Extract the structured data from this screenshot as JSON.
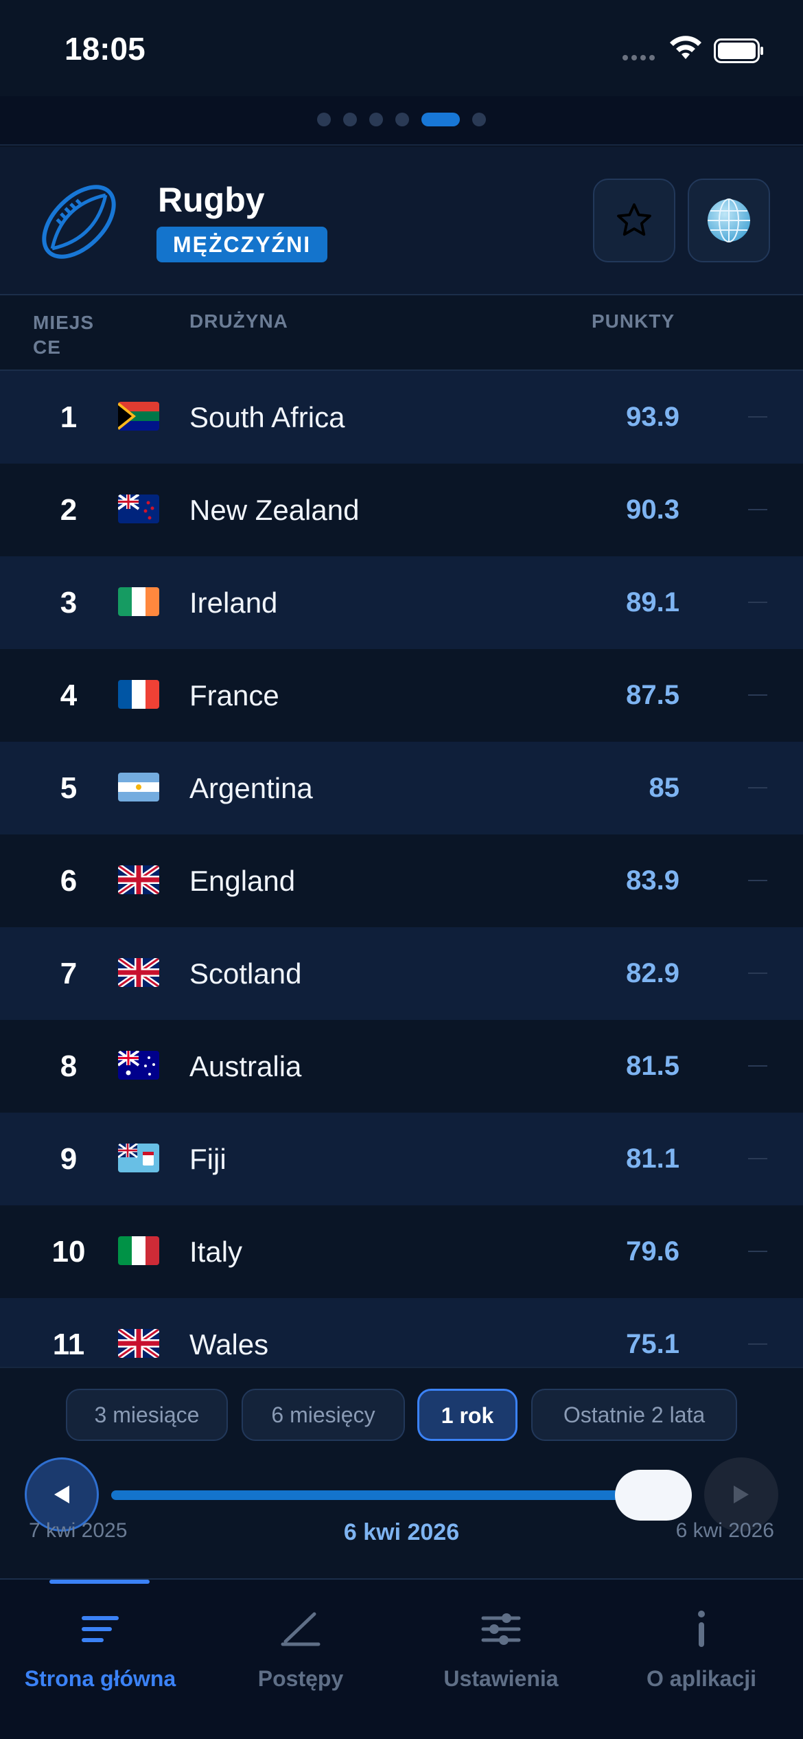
{
  "status_bar": {
    "time": "18:05"
  },
  "page_indicator": {
    "count": 6,
    "active_index": 4
  },
  "header": {
    "title": "Rugby",
    "badge": "MĘŻCZYŹNI",
    "icons": {
      "sport": "rugby-ball-icon",
      "favorite": "star-icon",
      "region": "globe-icon"
    }
  },
  "table": {
    "columns": {
      "rank": "MIEJS CE",
      "team": "DRUŻYNA",
      "points": "PUNKTY"
    },
    "rows": [
      {
        "rank": "1",
        "flag": "south-africa",
        "team": "South Africa",
        "points": "93.9",
        "change": "—"
      },
      {
        "rank": "2",
        "flag": "new-zealand",
        "team": "New Zealand",
        "points": "90.3",
        "change": "—"
      },
      {
        "rank": "3",
        "flag": "ireland",
        "team": "Ireland",
        "points": "89.1",
        "change": "—"
      },
      {
        "rank": "4",
        "flag": "france",
        "team": "France",
        "points": "87.5",
        "change": "—"
      },
      {
        "rank": "5",
        "flag": "argentina",
        "team": "Argentina",
        "points": "85",
        "change": "—"
      },
      {
        "rank": "6",
        "flag": "uk",
        "team": "England",
        "points": "83.9",
        "change": "—"
      },
      {
        "rank": "7",
        "flag": "uk",
        "team": "Scotland",
        "points": "82.9",
        "change": "—"
      },
      {
        "rank": "8",
        "flag": "australia",
        "team": "Australia",
        "points": "81.5",
        "change": "—"
      },
      {
        "rank": "9",
        "flag": "fiji",
        "team": "Fiji",
        "points": "81.1",
        "change": "—"
      },
      {
        "rank": "10",
        "flag": "italy",
        "team": "Italy",
        "points": "79.6",
        "change": "—"
      },
      {
        "rank": "11",
        "flag": "uk",
        "team": "Wales",
        "points": "75.1",
        "change": "—"
      }
    ]
  },
  "time_range": {
    "options": [
      "3 miesiące",
      "6 miesięcy",
      "1 rok",
      "Ostatnie 2 lata"
    ],
    "selected": "1 rok"
  },
  "timeline": {
    "start_date": "7 kwi 2025",
    "current_date": "6 kwi 2026",
    "end_date": "6 kwi 2026",
    "position": 1.0
  },
  "tabs": [
    {
      "label": "Strona główna",
      "icon": "list-icon",
      "active": true
    },
    {
      "label": "Postępy",
      "icon": "chart-line-icon",
      "active": false
    },
    {
      "label": "Ustawienia",
      "icon": "sliders-icon",
      "active": false
    },
    {
      "label": "O aplikacji",
      "icon": "info-icon",
      "active": false
    }
  ],
  "colors": {
    "background": "#0a1526",
    "accent": "#1474cc",
    "points": "#7eb4f2",
    "active_tab": "#3b82f6"
  }
}
